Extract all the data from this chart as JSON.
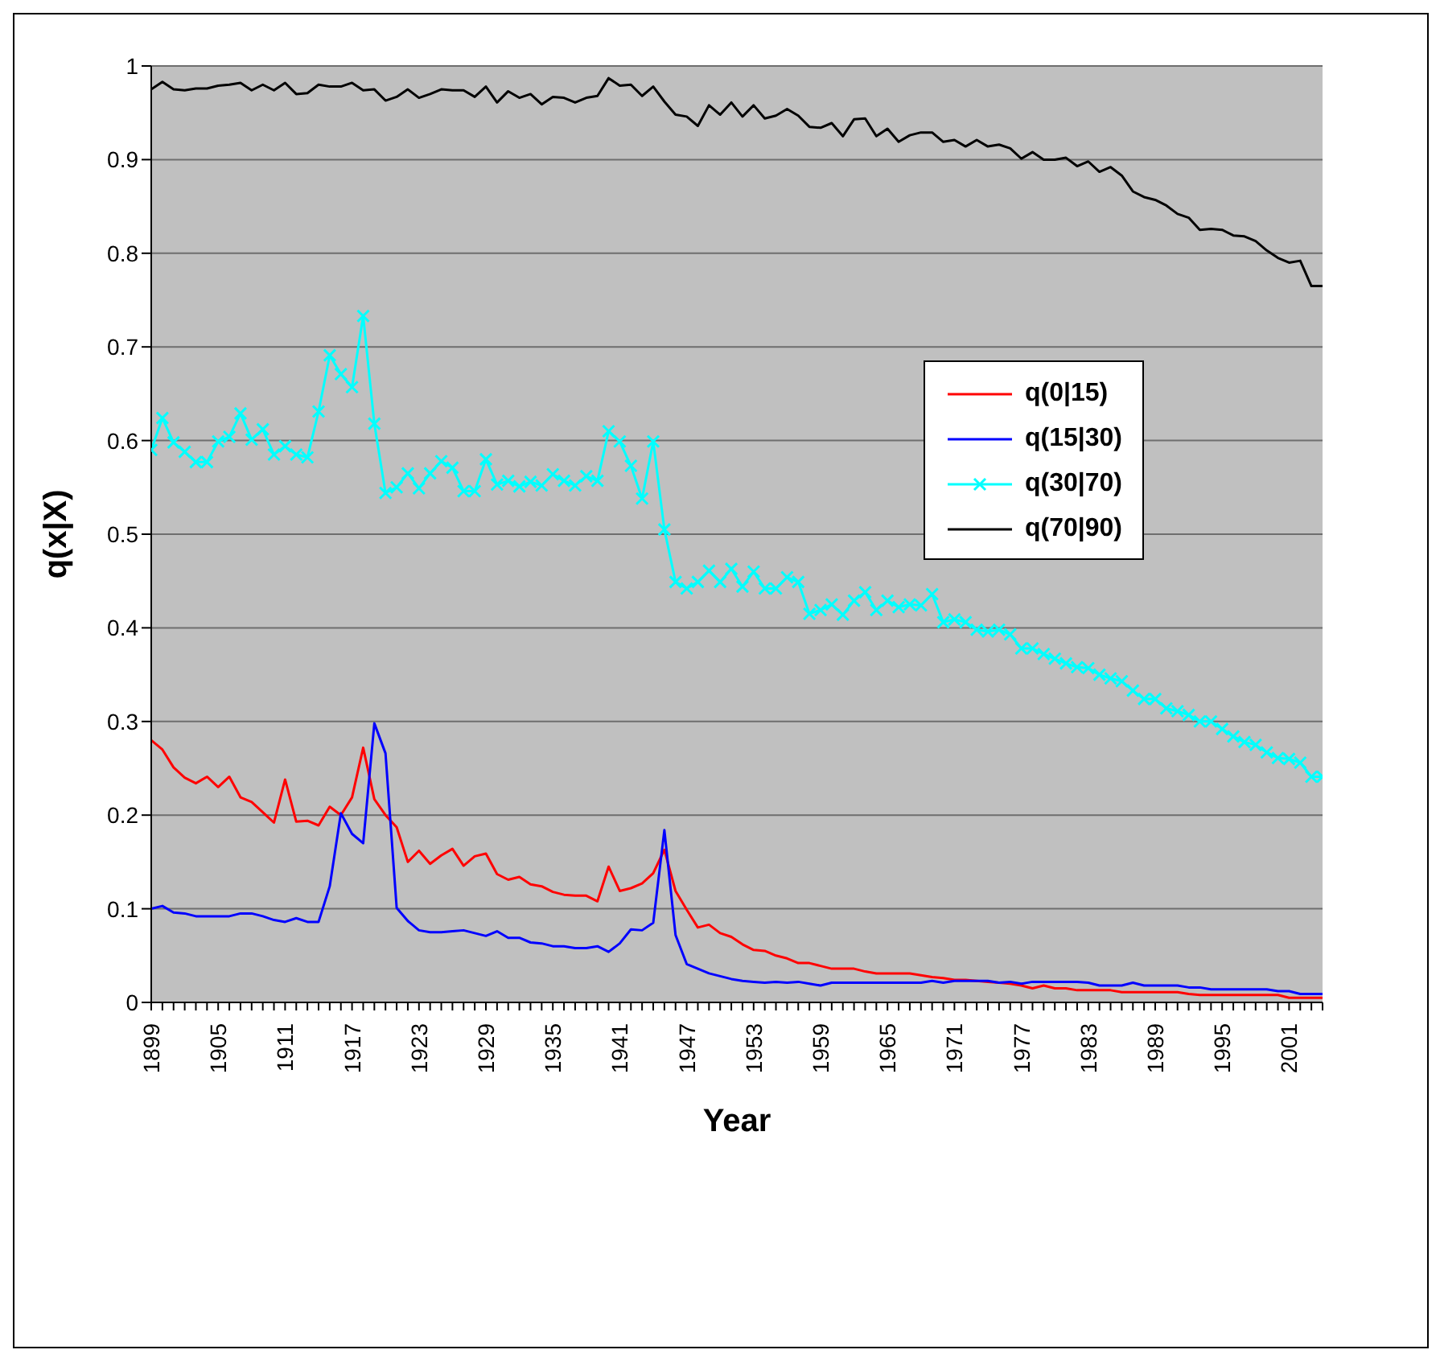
{
  "chart_data": {
    "type": "line",
    "xlabel": "Year",
    "ylabel": "q(x|X)",
    "categories": [
      "1899",
      null,
      null,
      null,
      null,
      null,
      "1905",
      null,
      null,
      null,
      null,
      null,
      "1911",
      null,
      null,
      null,
      null,
      null,
      "1917",
      null,
      null,
      null,
      null,
      null,
      "1923",
      null,
      null,
      null,
      null,
      null,
      "1929",
      null,
      null,
      null,
      null,
      null,
      "1935",
      null,
      null,
      null,
      null,
      null,
      "1941",
      null,
      null,
      null,
      null,
      null,
      "1947",
      null,
      null,
      null,
      null,
      null,
      "1953",
      null,
      null,
      null,
      null,
      null,
      "1959",
      null,
      null,
      null,
      null,
      null,
      "1965",
      null,
      null,
      null,
      null,
      null,
      "1971",
      null,
      null,
      null,
      null,
      null,
      "1977",
      null,
      null,
      null,
      null,
      null,
      "1983",
      null,
      null,
      null,
      null,
      null,
      "1989",
      null,
      null,
      null,
      null,
      null,
      "1995",
      null,
      null,
      null,
      null,
      null,
      "2001",
      null,
      null,
      null
    ],
    "series": [
      {
        "name": "q(0|15)",
        "color": "#ff0000",
        "marker": "none",
        "values": [
          0.28,
          0.27,
          0.251,
          0.24,
          0.234,
          0.241,
          0.23,
          0.241,
          0.219,
          0.214,
          0.203,
          0.192,
          0.238,
          0.193,
          0.194,
          0.189,
          0.209,
          0.2,
          0.219,
          0.272,
          0.217,
          0.2,
          0.187,
          0.15,
          0.162,
          0.148,
          0.157,
          0.164,
          0.146,
          0.156,
          0.159,
          0.137,
          0.131,
          0.134,
          0.126,
          0.124,
          0.118,
          0.115,
          0.114,
          0.114,
          0.108,
          0.145,
          0.119,
          0.122,
          0.127,
          0.138,
          0.163,
          0.119,
          0.099,
          0.08,
          0.083,
          0.074,
          0.07,
          0.062,
          0.056,
          0.055,
          0.05,
          0.047,
          0.042,
          0.042,
          0.039,
          0.036,
          0.036,
          0.036,
          0.033,
          0.031,
          0.031,
          0.031,
          0.031,
          0.029,
          0.027,
          0.026,
          0.024,
          0.024,
          0.023,
          0.022,
          0.021,
          0.02,
          0.018,
          0.015,
          0.018,
          0.015,
          0.015,
          0.013,
          0.013,
          0.013,
          0.013,
          0.011,
          0.011,
          0.011,
          0.011,
          0.011,
          0.011,
          0.009,
          0.008,
          0.008,
          0.008,
          0.008,
          0.008,
          0.008,
          0.008,
          0.008,
          0.005,
          0.005,
          0.005,
          0.005
        ]
      },
      {
        "name": "q(15|30)",
        "color": "#0000ff",
        "marker": "none",
        "values": [
          0.1,
          0.103,
          0.096,
          0.095,
          0.092,
          0.092,
          0.092,
          0.092,
          0.095,
          0.095,
          0.092,
          0.088,
          0.086,
          0.09,
          0.086,
          0.086,
          0.124,
          0.202,
          0.18,
          0.17,
          0.298,
          0.266,
          0.101,
          0.087,
          0.077,
          0.075,
          0.075,
          0.076,
          0.077,
          0.074,
          0.071,
          0.076,
          0.069,
          0.069,
          0.064,
          0.063,
          0.06,
          0.06,
          0.058,
          0.058,
          0.06,
          0.054,
          0.063,
          0.078,
          0.077,
          0.085,
          0.184,
          0.072,
          0.041,
          0.036,
          0.031,
          0.028,
          0.025,
          0.023,
          0.022,
          0.021,
          0.022,
          0.021,
          0.022,
          0.02,
          0.018,
          0.021,
          0.021,
          0.021,
          0.021,
          0.021,
          0.021,
          0.021,
          0.021,
          0.021,
          0.023,
          0.021,
          0.023,
          0.023,
          0.023,
          0.023,
          0.021,
          0.022,
          0.02,
          0.022,
          0.022,
          0.022,
          0.022,
          0.022,
          0.021,
          0.018,
          0.018,
          0.018,
          0.021,
          0.018,
          0.018,
          0.018,
          0.018,
          0.016,
          0.016,
          0.014,
          0.014,
          0.014,
          0.014,
          0.014,
          0.014,
          0.012,
          0.012,
          0.009,
          0.009,
          0.009
        ]
      },
      {
        "name": "q(30|70)",
        "color": "#00ffff",
        "marker": "cross",
        "values": [
          0.59,
          0.624,
          0.598,
          0.588,
          0.577,
          0.577,
          0.599,
          0.604,
          0.629,
          0.601,
          0.612,
          0.585,
          0.594,
          0.585,
          0.582,
          0.631,
          0.691,
          0.671,
          0.657,
          0.733,
          0.618,
          0.544,
          0.55,
          0.565,
          0.549,
          0.565,
          0.578,
          0.571,
          0.546,
          0.546,
          0.58,
          0.553,
          0.557,
          0.551,
          0.556,
          0.552,
          0.564,
          0.557,
          0.552,
          0.562,
          0.557,
          0.61,
          0.599,
          0.573,
          0.538,
          0.599,
          0.505,
          0.449,
          0.442,
          0.449,
          0.461,
          0.449,
          0.463,
          0.444,
          0.46,
          0.442,
          0.442,
          0.454,
          0.449,
          0.415,
          0.419,
          0.425,
          0.414,
          0.429,
          0.438,
          0.419,
          0.429,
          0.422,
          0.425,
          0.424,
          0.436,
          0.406,
          0.409,
          0.406,
          0.398,
          0.396,
          0.398,
          0.393,
          0.378,
          0.378,
          0.372,
          0.367,
          0.362,
          0.358,
          0.357,
          0.35,
          0.346,
          0.343,
          0.333,
          0.324,
          0.324,
          0.314,
          0.311,
          0.307,
          0.3,
          0.3,
          0.292,
          0.284,
          0.278,
          0.275,
          0.267,
          0.261,
          0.26,
          0.256,
          0.241,
          0.241
        ]
      },
      {
        "name": "q(70|90)",
        "color": "#000000",
        "marker": "none",
        "values": [
          0.975,
          0.983,
          0.975,
          0.974,
          0.976,
          0.976,
          0.979,
          0.98,
          0.982,
          0.974,
          0.98,
          0.974,
          0.982,
          0.97,
          0.971,
          0.98,
          0.978,
          0.978,
          0.982,
          0.974,
          0.975,
          0.963,
          0.967,
          0.975,
          0.966,
          0.97,
          0.975,
          0.974,
          0.974,
          0.967,
          0.978,
          0.961,
          0.973,
          0.966,
          0.97,
          0.959,
          0.967,
          0.966,
          0.961,
          0.966,
          0.968,
          0.987,
          0.979,
          0.98,
          0.968,
          0.978,
          0.962,
          0.948,
          0.946,
          0.936,
          0.958,
          0.948,
          0.961,
          0.946,
          0.958,
          0.944,
          0.947,
          0.954,
          0.947,
          0.935,
          0.934,
          0.939,
          0.925,
          0.943,
          0.944,
          0.925,
          0.933,
          0.919,
          0.926,
          0.929,
          0.929,
          0.919,
          0.921,
          0.914,
          0.921,
          0.914,
          0.916,
          0.912,
          0.901,
          0.908,
          0.9,
          0.9,
          0.902,
          0.893,
          0.898,
          0.887,
          0.892,
          0.883,
          0.866,
          0.86,
          0.857,
          0.851,
          0.842,
          0.838,
          0.825,
          0.826,
          0.825,
          0.819,
          0.818,
          0.813,
          0.803,
          0.795,
          0.79,
          0.792,
          0.765,
          0.765
        ]
      }
    ],
    "ylim": [
      0,
      1
    ],
    "yticks": [
      0,
      0.1,
      0.2,
      0.3,
      0.4,
      0.5,
      0.6,
      0.7,
      0.8,
      0.9,
      1
    ],
    "grid": "y",
    "legend": "right",
    "line_style": "solid"
  }
}
